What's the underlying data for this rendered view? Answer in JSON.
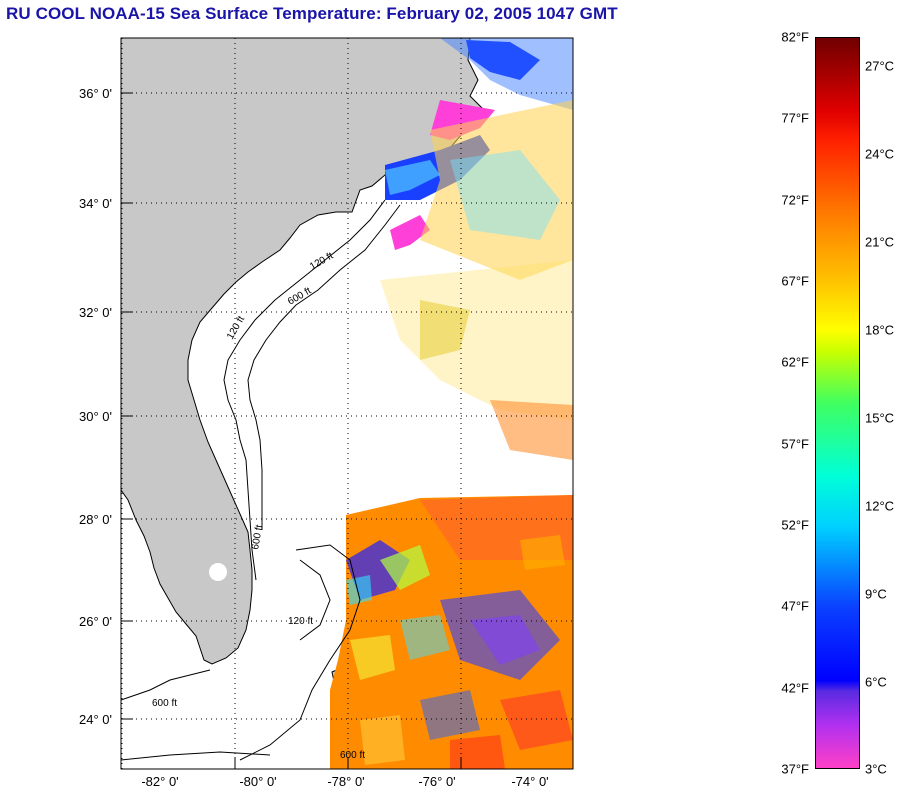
{
  "title": "RU COOL  NOAA-15  Sea Surface Temperature:  February 02, 2005 1047 GMT",
  "latitude_labels": [
    "36° 0'",
    "34° 0'",
    "32° 0'",
    "30° 0'",
    "28° 0'",
    "26° 0'",
    "24° 0'"
  ],
  "longitude_labels": [
    "-82° 0'",
    "-80° 0'",
    "-78° 0'",
    "-76° 0'",
    "-74° 0'"
  ],
  "contour_labels": [
    "120 ft",
    "600 ft"
  ],
  "colorbar": {
    "fahrenheit_labels": [
      "82°F",
      "77°F",
      "72°F",
      "67°F",
      "62°F",
      "57°F",
      "52°F",
      "47°F",
      "42°F",
      "37°F"
    ],
    "celsius_labels": [
      "27°C",
      "24°C",
      "21°C",
      "18°C",
      "15°C",
      "12°C",
      "9°C",
      "6°C",
      "3°C"
    ],
    "range_f": [
      37,
      82
    ],
    "colors": [
      "#ff40c8",
      "#0000ff",
      "#00ffd8",
      "#ffff00",
      "#ff7a00",
      "#e00000",
      "#700000"
    ]
  },
  "colors": {
    "title": "#1a14a8",
    "land": "#c8c8c8",
    "no_data": "#ffffff"
  }
}
